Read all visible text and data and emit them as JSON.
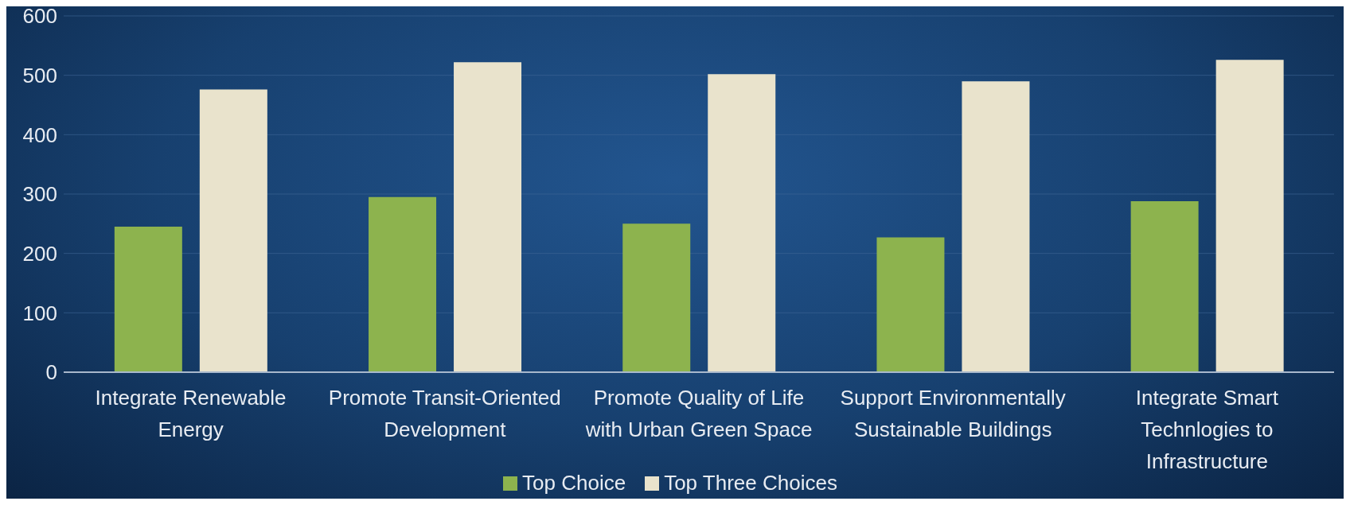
{
  "chart_data": {
    "type": "bar",
    "categories": [
      "Integrate Renewable Energy",
      "Promote Transit-Oriented Development",
      "Promote Quality of Life with Urban Green Space",
      "Support Environmentally Sustainable Buildings",
      "Integrate Smart Technlogies to Infrastructure"
    ],
    "series": [
      {
        "name": "Top Choice",
        "color": "#8db34e",
        "values": [
          245,
          295,
          250,
          227,
          288
        ]
      },
      {
        "name": "Top Three Choices",
        "color": "#e9e3cc",
        "values": [
          476,
          522,
          502,
          490,
          526
        ]
      }
    ],
    "ylim": [
      0,
      600
    ],
    "yticks": [
      0,
      100,
      200,
      300,
      400,
      500,
      600
    ],
    "grid": "y",
    "legend": "bottom"
  }
}
